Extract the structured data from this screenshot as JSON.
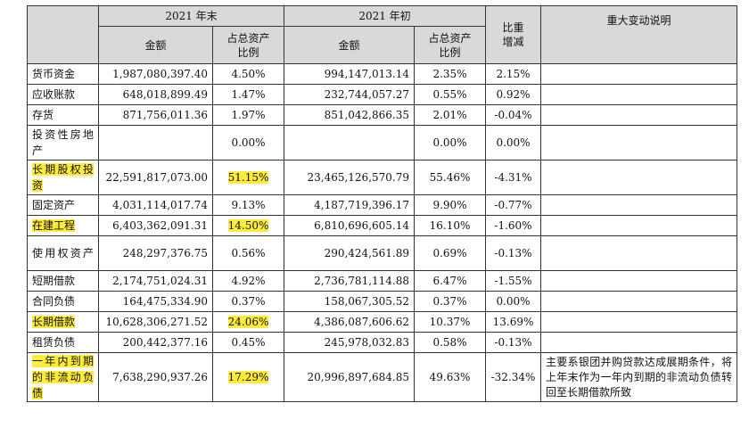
{
  "headers": {
    "end_2021": "2021 年末",
    "start_2021": "2021 年初",
    "ratio_change": "比重增减",
    "remark": "重大变动说明",
    "amount": "金额",
    "pct_of_assets": "占总资产比例"
  },
  "rows": [
    {
      "item": "货币资金",
      "highlight": false,
      "end_amount": "1,987,080,397.40",
      "end_pct": "4.50%",
      "start_amount": "994,147,013.14",
      "start_pct": "2.35%",
      "change": "2.15%",
      "note": ""
    },
    {
      "item": "应收账款",
      "highlight": false,
      "end_amount": "648,018,899.49",
      "end_pct": "1.47%",
      "start_amount": "232,744,057.27",
      "start_pct": "0.55%",
      "change": "0.92%",
      "note": ""
    },
    {
      "item": "存货",
      "highlight": false,
      "end_amount": "871,756,011.36",
      "end_pct": "1.97%",
      "start_amount": "851,042,866.35",
      "start_pct": "2.01%",
      "change": "-0.04%",
      "note": ""
    },
    {
      "item": "投资性房地产",
      "highlight": false,
      "end_amount": "",
      "end_pct": "0.00%",
      "start_amount": "",
      "start_pct": "0.00%",
      "change": "0.00%",
      "note": ""
    },
    {
      "item": "长期股权投资",
      "highlight": true,
      "end_amount": "22,591,817,073.00",
      "end_pct": "51.15%",
      "start_amount": "23,465,126,570.79",
      "start_pct": "55.46%",
      "change": "-4.31%",
      "note": ""
    },
    {
      "item": "固定资产",
      "highlight": false,
      "end_amount": "4,031,114,017.74",
      "end_pct": "9.13%",
      "start_amount": "4,187,719,396.17",
      "start_pct": "9.90%",
      "change": "-0.77%",
      "note": ""
    },
    {
      "item": "在建工程",
      "highlight": true,
      "end_amount": "6,403,362,091.31",
      "end_pct": "14.50%",
      "start_amount": "6,810,696,605.14",
      "start_pct": "16.10%",
      "change": "-1.60%",
      "note": ""
    },
    {
      "item": "使用权资产",
      "highlight": false,
      "end_amount": "248,297,376.75",
      "end_pct": "0.56%",
      "start_amount": "290,424,561.89",
      "start_pct": "0.69%",
      "change": "-0.13%",
      "note": ""
    },
    {
      "item": "短期借款",
      "highlight": false,
      "end_amount": "2,174,751,024.31",
      "end_pct": "4.92%",
      "start_amount": "2,736,781,114.88",
      "start_pct": "6.47%",
      "change": "-1.55%",
      "note": ""
    },
    {
      "item": "合同负债",
      "highlight": false,
      "end_amount": "164,475,334.90",
      "end_pct": "0.37%",
      "start_amount": "158,067,305.52",
      "start_pct": "0.37%",
      "change": "0.00%",
      "note": ""
    },
    {
      "item": "长期借款",
      "highlight": true,
      "end_amount": "10,628,306,271.52",
      "end_pct": "24.06%",
      "start_amount": "4,386,087,606.62",
      "start_pct": "10.37%",
      "change": "13.69%",
      "note": ""
    },
    {
      "item": "租赁负债",
      "highlight": false,
      "end_amount": "200,442,377.16",
      "end_pct": "0.45%",
      "start_amount": "245,978,032.83",
      "start_pct": "0.58%",
      "change": "-0.13%",
      "note": ""
    },
    {
      "item": "一年内到期的非流动负债",
      "highlight": true,
      "end_amount": "7,638,290,937.26",
      "end_pct": "17.29%",
      "start_amount": "20,996,897,684.85",
      "start_pct": "49.63%",
      "change": "-32.34%",
      "note": "主要系银团并购贷款达成展期条件，将上年末作为一年内到期的非流动负债转回至长期借款所致"
    }
  ]
}
